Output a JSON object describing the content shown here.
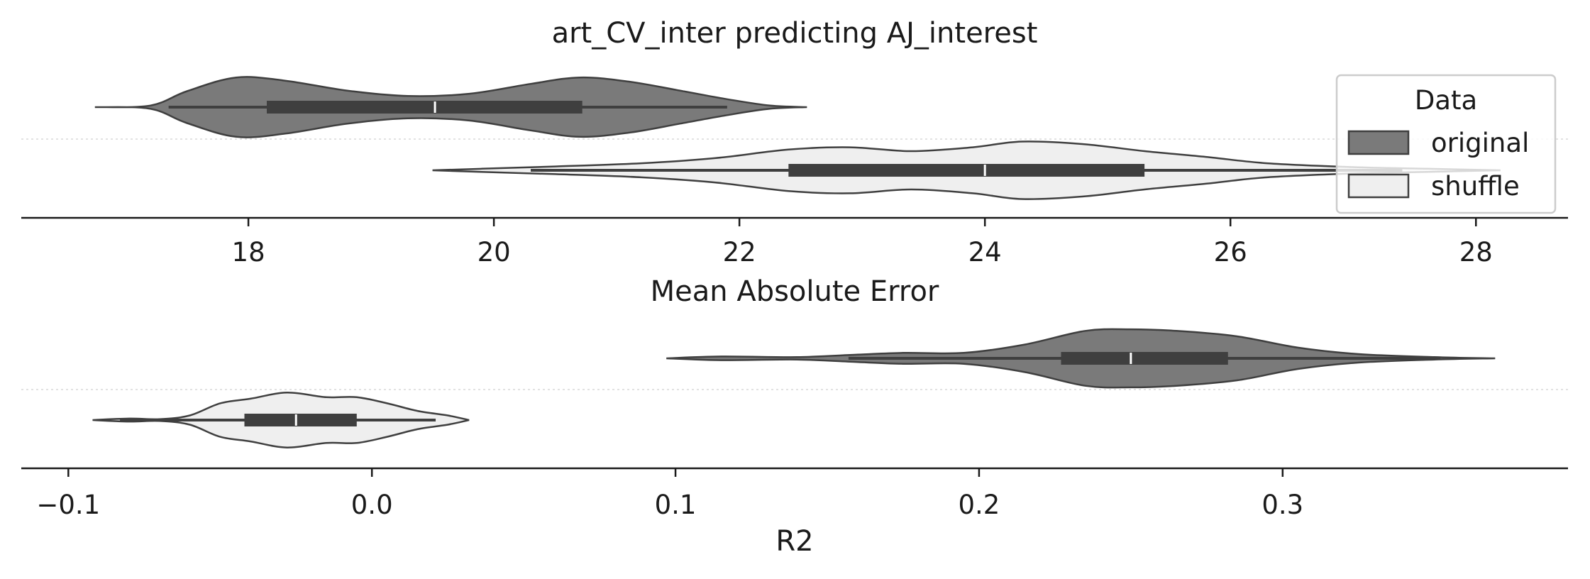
{
  "chart_data": [
    {
      "type": "violin",
      "title": "art_CV_inter predicting AJ_interest",
      "xlabel": "Mean Absolute Error",
      "xlim": [
        16.15,
        28.75
      ],
      "xticks": [
        18,
        20,
        22,
        24,
        26,
        28
      ],
      "xtick_labels": [
        "18",
        "20",
        "22",
        "24",
        "26",
        "28"
      ],
      "grid": false,
      "series": [
        {
          "name": "original",
          "color": "#7a7a7a",
          "whisker": [
            17.35,
            21.9
          ],
          "q1": 18.15,
          "median": 19.52,
          "q3": 20.72,
          "density": [
            [
              16.75,
              0.0
            ],
            [
              17.2,
              0.05
            ],
            [
              17.5,
              0.5
            ],
            [
              17.9,
              0.93
            ],
            [
              18.3,
              0.83
            ],
            [
              18.8,
              0.52
            ],
            [
              19.3,
              0.35
            ],
            [
              19.8,
              0.42
            ],
            [
              20.3,
              0.73
            ],
            [
              20.7,
              0.93
            ],
            [
              21.1,
              0.8
            ],
            [
              21.5,
              0.53
            ],
            [
              21.9,
              0.25
            ],
            [
              22.25,
              0.05
            ],
            [
              22.55,
              0.0
            ]
          ]
        },
        {
          "name": "shuffle",
          "color": "#efefef",
          "whisker": [
            20.3,
            27.4
          ],
          "q1": 22.4,
          "median": 24.0,
          "q3": 25.3,
          "density": [
            [
              19.5,
              0.0
            ],
            [
              19.9,
              0.05
            ],
            [
              20.5,
              0.12
            ],
            [
              21.2,
              0.22
            ],
            [
              21.8,
              0.38
            ],
            [
              22.4,
              0.65
            ],
            [
              22.9,
              0.72
            ],
            [
              23.4,
              0.6
            ],
            [
              23.9,
              0.72
            ],
            [
              24.3,
              0.9
            ],
            [
              24.8,
              0.82
            ],
            [
              25.3,
              0.6
            ],
            [
              25.8,
              0.42
            ],
            [
              26.3,
              0.22
            ],
            [
              27.0,
              0.1
            ],
            [
              27.6,
              0.05
            ],
            [
              28.2,
              0.0
            ]
          ]
        }
      ]
    },
    {
      "type": "violin",
      "title": "",
      "xlabel": "R2",
      "xlim": [
        -0.1155,
        0.394
      ],
      "xticks": [
        -0.1,
        0.0,
        0.1,
        0.2,
        0.3
      ],
      "xtick_labels": [
        "−0.1",
        "0.0",
        "0.1",
        "0.2",
        "0.3"
      ],
      "grid": false,
      "series": [
        {
          "name": "original",
          "color": "#7a7a7a",
          "whisker": [
            0.157,
            0.352
          ],
          "q1": 0.227,
          "median": 0.25,
          "q3": 0.282,
          "density": [
            [
              0.097,
              0.0
            ],
            [
              0.115,
              0.06
            ],
            [
              0.14,
              0.04
            ],
            [
              0.16,
              0.12
            ],
            [
              0.175,
              0.18
            ],
            [
              0.195,
              0.18
            ],
            [
              0.215,
              0.45
            ],
            [
              0.235,
              0.9
            ],
            [
              0.25,
              0.95
            ],
            [
              0.265,
              0.9
            ],
            [
              0.285,
              0.72
            ],
            [
              0.305,
              0.35
            ],
            [
              0.325,
              0.14
            ],
            [
              0.35,
              0.04
            ],
            [
              0.37,
              0.0
            ]
          ]
        },
        {
          "name": "shuffle",
          "color": "#efefef",
          "whisker": [
            -0.083,
            0.021
          ],
          "q1": -0.042,
          "median": -0.025,
          "q3": -0.005,
          "density": [
            [
              -0.092,
              0.0
            ],
            [
              -0.08,
              0.05
            ],
            [
              -0.07,
              0.03
            ],
            [
              -0.06,
              0.15
            ],
            [
              -0.05,
              0.55
            ],
            [
              -0.04,
              0.7
            ],
            [
              -0.028,
              0.9
            ],
            [
              -0.015,
              0.75
            ],
            [
              -0.005,
              0.75
            ],
            [
              0.005,
              0.55
            ],
            [
              0.015,
              0.3
            ],
            [
              0.025,
              0.15
            ],
            [
              0.032,
              0.0
            ]
          ]
        }
      ]
    }
  ],
  "legend": {
    "title": "Data",
    "placement": "top-right",
    "items": [
      {
        "label": "original",
        "color": "#7a7a7a"
      },
      {
        "label": "shuffle",
        "color": "#efefef"
      }
    ]
  }
}
